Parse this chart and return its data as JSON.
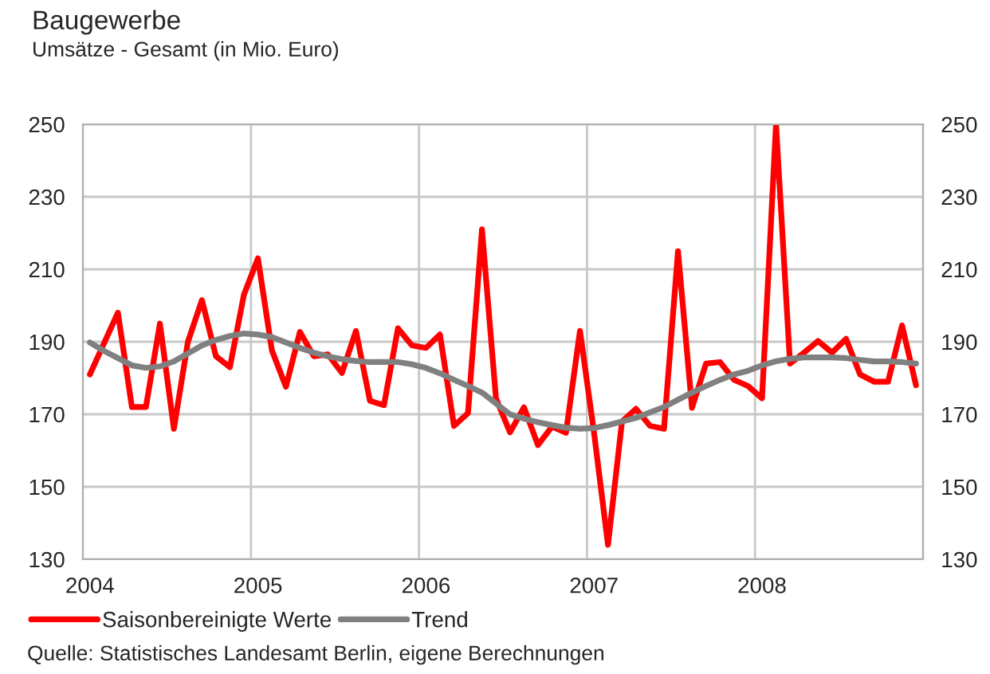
{
  "chart_data": {
    "type": "line",
    "title": "Baugewerbe",
    "subtitle": "Umsätze - Gesamt (in Mio. Euro)",
    "categories": [
      "2004",
      null,
      null,
      null,
      null,
      null,
      null,
      null,
      null,
      null,
      null,
      null,
      "2005",
      null,
      null,
      null,
      null,
      null,
      null,
      null,
      null,
      null,
      null,
      null,
      "2006",
      null,
      null,
      null,
      null,
      null,
      null,
      null,
      null,
      null,
      null,
      null,
      "2007",
      null,
      null,
      null,
      null,
      null,
      null,
      null,
      null,
      null,
      null,
      null,
      "2008",
      null,
      null,
      null,
      null,
      null,
      null,
      null,
      null,
      null,
      null,
      null
    ],
    "series": [
      {
        "name": "Saisonbereinigte Werte",
        "color": "#ff0000",
        "values": [
          181,
          189.5,
          198,
          172,
          172,
          195,
          166,
          190,
          201.5,
          186,
          183,
          203,
          213,
          187.6,
          177.6,
          192.7,
          186,
          186.5,
          181.4,
          193,
          173.7,
          172.5,
          193.7,
          189,
          188.3,
          192,
          166.8,
          170.3,
          221,
          174.4,
          165,
          171.9,
          161.5,
          166.6,
          164.9,
          193,
          165,
          134,
          168,
          171.5,
          166.8,
          166,
          215,
          171.8,
          184,
          184.4,
          179.5,
          177.8,
          174.4,
          250,
          184,
          187,
          190.2,
          187,
          190.8,
          181,
          179,
          179,
          194.5,
          178
        ]
      },
      {
        "name": "Trend",
        "color": "#808080",
        "values": [
          189.8,
          187.5,
          185.5,
          183.5,
          182.8,
          183.2,
          184.6,
          186.8,
          189,
          190.5,
          191.6,
          192.3,
          192,
          191.3,
          189.8,
          188.3,
          187,
          186,
          185.2,
          184.7,
          184.4,
          184.4,
          184.4,
          183.8,
          182.8,
          181.3,
          179.5,
          177.8,
          176,
          173,
          170,
          168.8,
          167.8,
          167,
          166.3,
          166,
          166.2,
          167,
          168,
          169,
          170.5,
          172,
          174,
          176,
          177.8,
          179.5,
          181,
          182,
          183.5,
          184.6,
          185.3,
          185.7,
          185.7,
          185.7,
          185.5,
          185,
          184.6,
          184.6,
          184.4,
          184
        ]
      }
    ],
    "ylim": [
      130,
      250
    ],
    "yticks": [
      130,
      150,
      170,
      190,
      210,
      230,
      250
    ],
    "y2lim": [
      130,
      250
    ],
    "y2ticks": [
      130,
      150,
      170,
      190,
      210,
      230,
      250
    ],
    "grid": true,
    "legend": "bottom",
    "marker": "none",
    "line_style": "solid",
    "annotations": [
      "Quelle: Statistisches Landesamt Berlin, eigene Berechnungen"
    ]
  }
}
